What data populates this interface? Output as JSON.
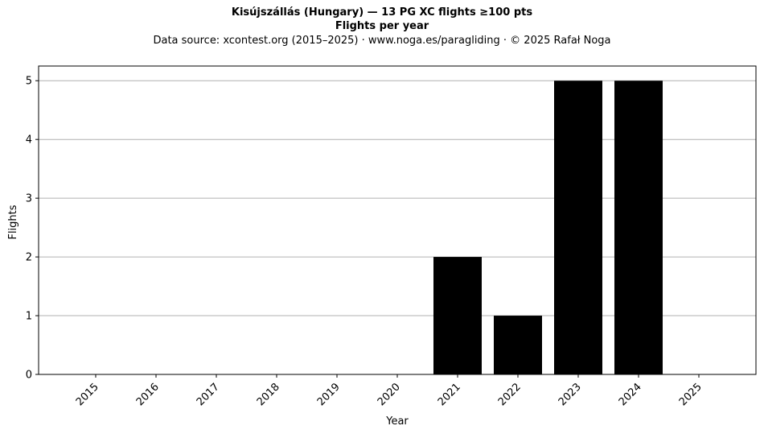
{
  "chart_data": {
    "type": "bar",
    "title": "Kisújszállás (Hungary)  —  13 PG XC flights ≥100 pts",
    "subtitle": "Flights per year",
    "source": "Data source: xcontest.org (2015–2025)  ·  www.noga.es/paragliding  ·  © 2025 Rafał Noga",
    "xlabel": "Year",
    "ylabel": "Flights",
    "categories": [
      "2015",
      "2016",
      "2017",
      "2018",
      "2019",
      "2020",
      "2021",
      "2022",
      "2023",
      "2024",
      "2025"
    ],
    "values": [
      0,
      0,
      0,
      0,
      0,
      0,
      2,
      1,
      5,
      5,
      0
    ],
    "ylim": [
      0,
      5.25
    ],
    "yticks": [
      "0",
      "1",
      "2",
      "3",
      "4",
      "5"
    ],
    "grid": "y",
    "bar_color": "#000000",
    "grid_color": "#b0b0b0"
  }
}
